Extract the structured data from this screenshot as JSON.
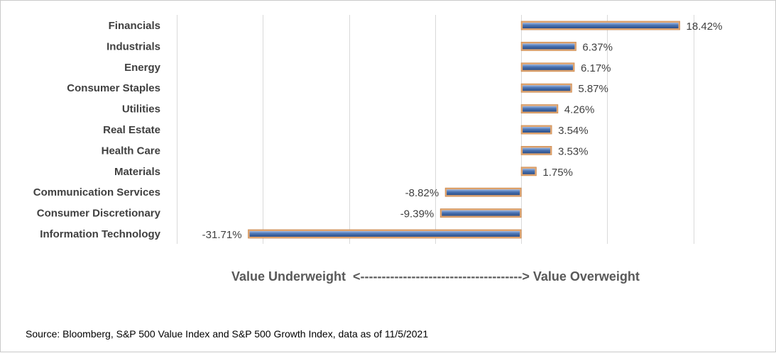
{
  "chart_data": {
    "type": "bar",
    "orientation": "horizontal",
    "categories": [
      "Financials",
      "Industrials",
      "Energy",
      "Consumer Staples",
      "Utilities",
      "Real Estate",
      "Health Care",
      "Materials",
      "Communication Services",
      "Consumer Discretionary",
      "Information Technology"
    ],
    "values": [
      18.42,
      6.37,
      6.17,
      5.87,
      4.26,
      3.54,
      3.53,
      1.75,
      -8.82,
      -9.39,
      -31.71
    ],
    "value_labels": [
      "18.42%",
      "6.37%",
      "6.17%",
      "5.87%",
      "4.26%",
      "3.54%",
      "3.53%",
      "1.75%",
      "-8.82%",
      "-9.39%",
      "-31.71%"
    ],
    "xlim": [
      -40,
      30
    ],
    "gridlines": [
      -40,
      -30,
      -20,
      -10,
      0,
      10,
      20,
      30
    ],
    "grid": true,
    "xlabel": "Value Underweight  <--------------------------------------> Value Overweight",
    "ylabel": "",
    "title": "",
    "colors": {
      "bar_fill": "#4a73b3",
      "bar_border": "#e6a972",
      "grid": "#d9d9d9"
    }
  },
  "source": "Source: Bloomberg, S&P 500 Value Index and S&P 500 Growth Index, data as of 11/5/2021"
}
